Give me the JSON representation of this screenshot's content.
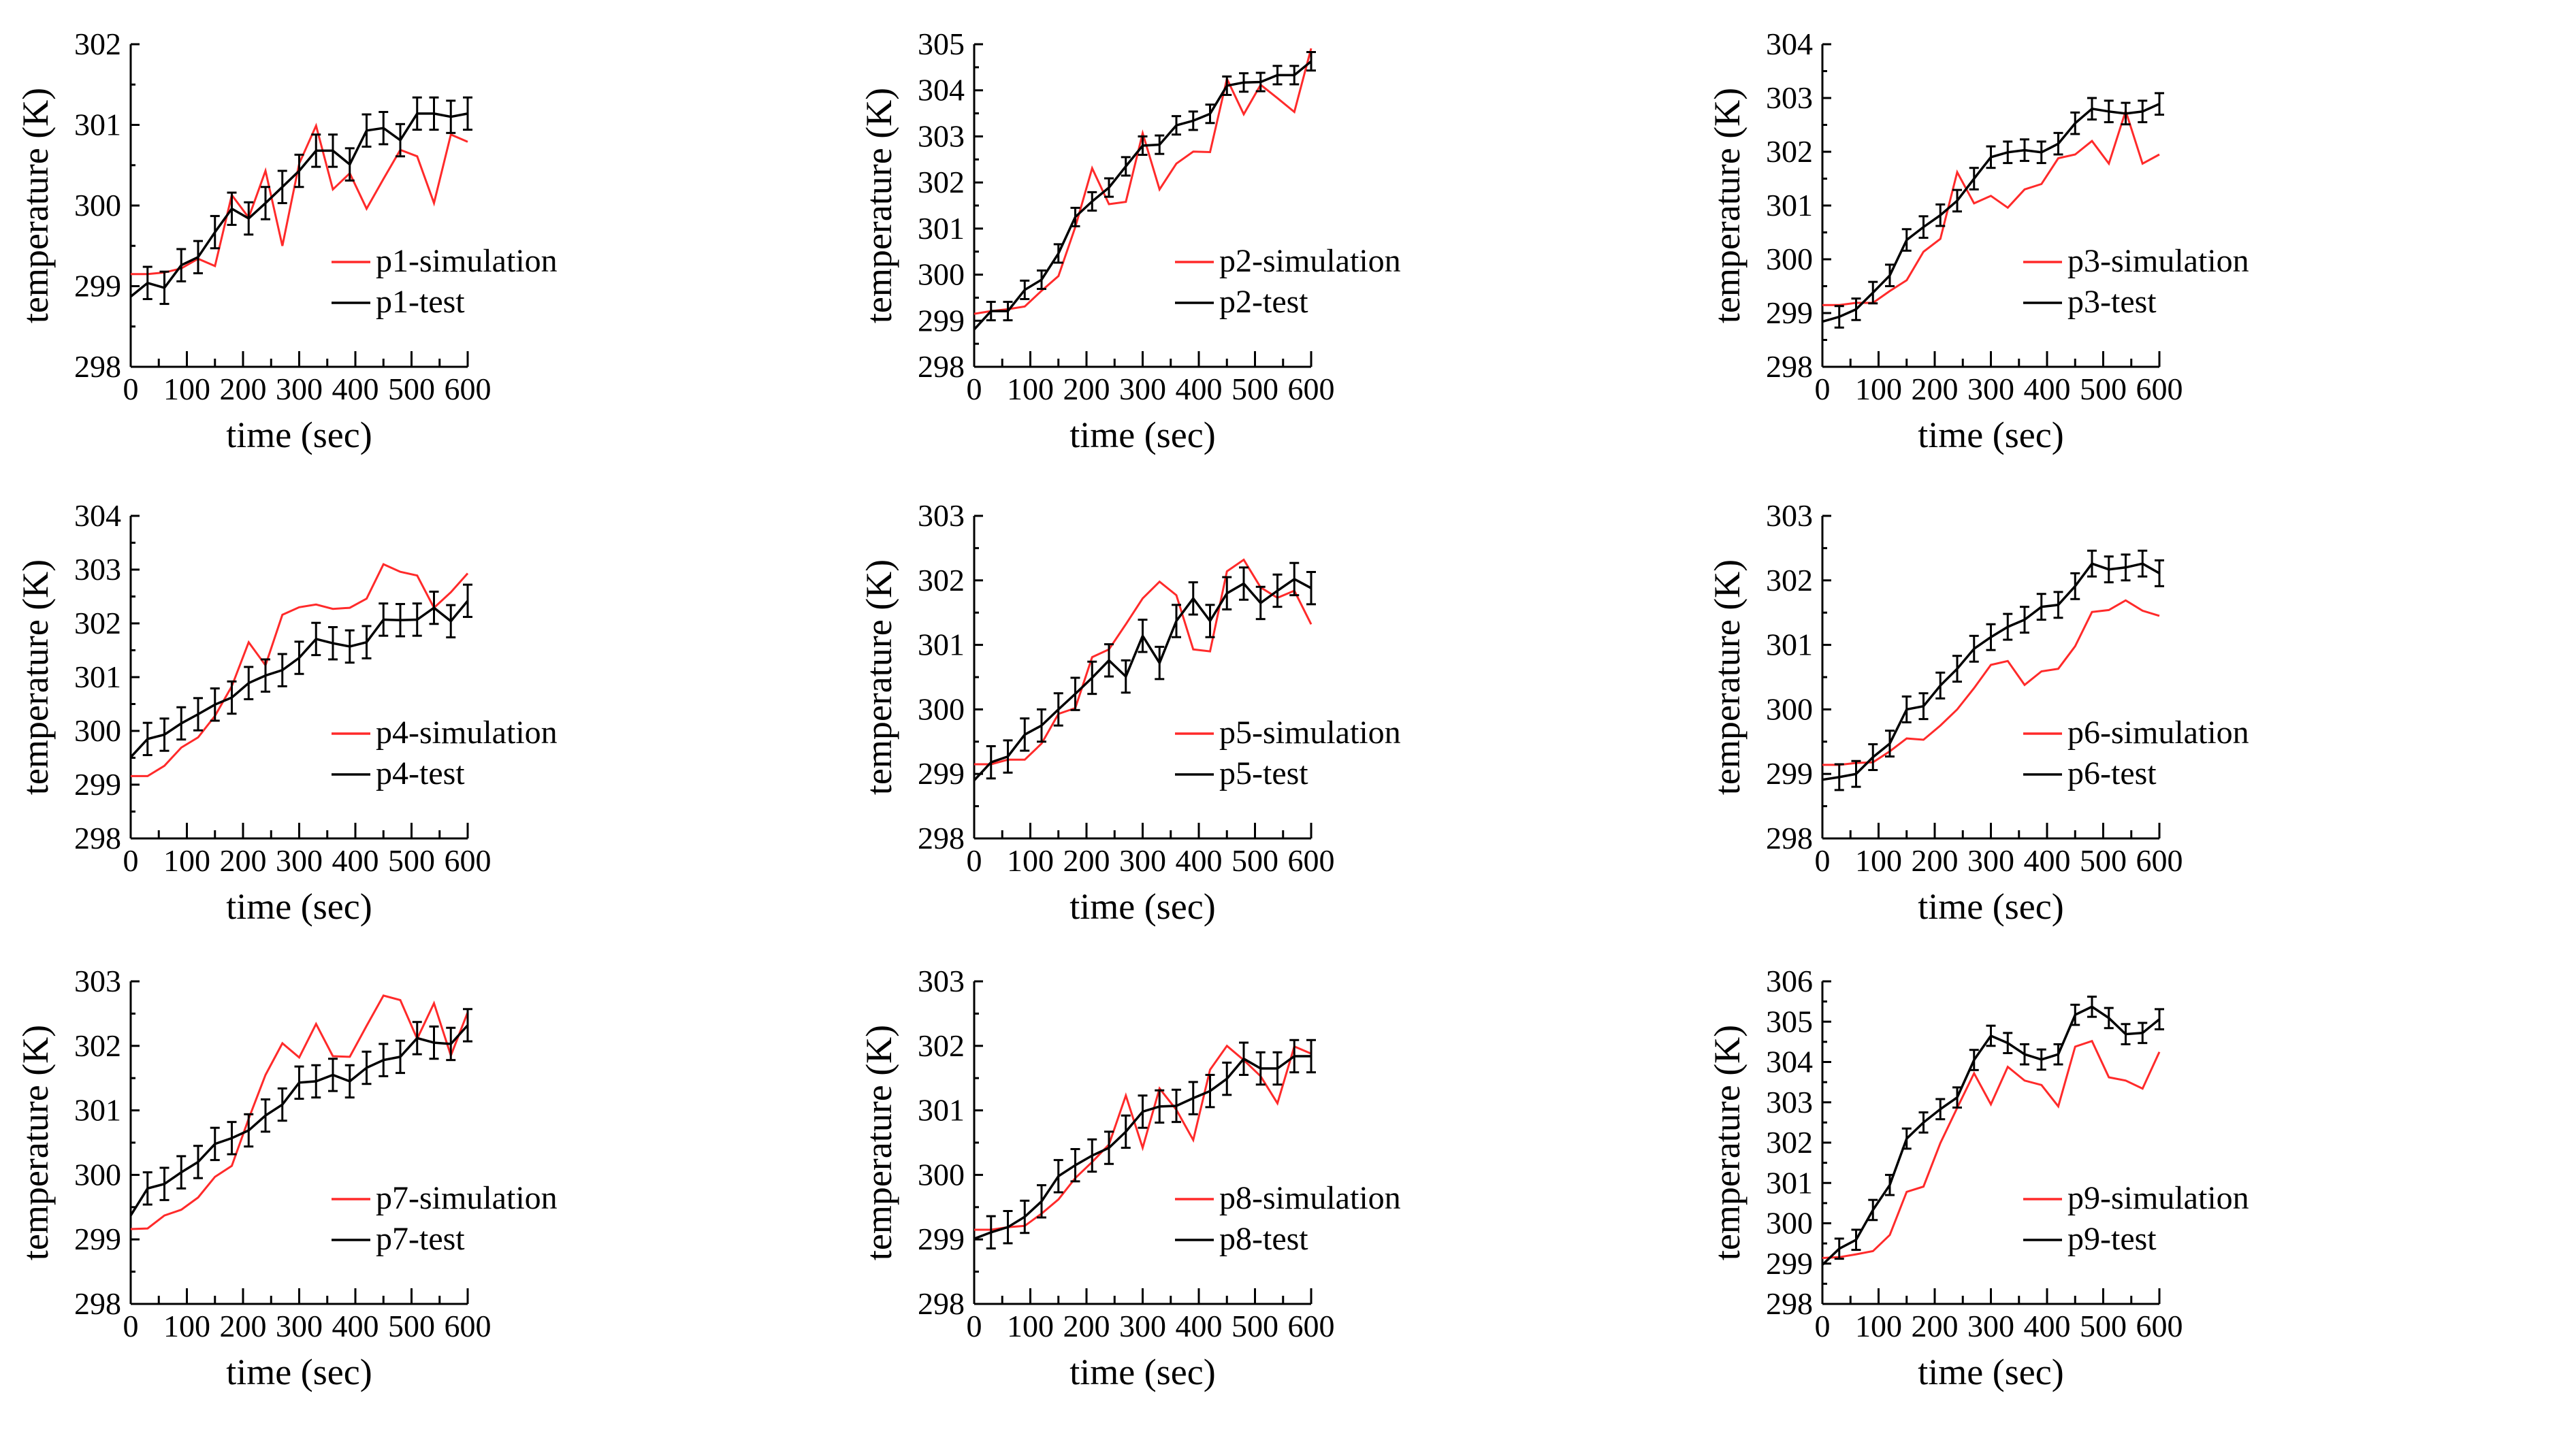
{
  "chart_data": [
    {
      "type": "line",
      "xlabel": "time (sec)",
      "ylabel": "temperature (K)",
      "xlim": [
        0,
        600
      ],
      "ylim": [
        298,
        302
      ],
      "xticks": [
        0,
        100,
        200,
        300,
        400,
        500,
        600
      ],
      "yticks": [
        298,
        299,
        300,
        301,
        302
      ],
      "legend": "bottom-right",
      "x": [
        0,
        30,
        60,
        90,
        120,
        150,
        180,
        210,
        240,
        270,
        300,
        330,
        360,
        390,
        420,
        450,
        480,
        510,
        540,
        570,
        600
      ],
      "series": [
        {
          "name": "p1-simulation",
          "color": "#ff2a2a",
          "values": [
            299.15,
            299.15,
            299.17,
            299.22,
            299.34,
            299.25,
            300.13,
            299.85,
            300.43,
            299.5,
            300.52,
            300.99,
            300.2,
            300.4,
            299.96,
            300.33,
            300.69,
            300.61,
            300.03,
            300.88,
            300.79
          ]
        },
        {
          "name": "p1-test",
          "color": "#000000",
          "error": 0.2,
          "values": [
            298.87,
            299.04,
            298.98,
            299.26,
            299.36,
            299.67,
            299.96,
            299.84,
            300.03,
            300.23,
            300.43,
            300.68,
            300.68,
            300.51,
            300.93,
            300.96,
            300.81,
            301.14,
            301.14,
            301.1,
            301.14
          ]
        }
      ]
    },
    {
      "type": "line",
      "xlabel": "time (sec)",
      "ylabel": "temperature (K)",
      "xlim": [
        0,
        600
      ],
      "ylim": [
        298,
        305
      ],
      "xticks": [
        0,
        100,
        200,
        300,
        400,
        500,
        600
      ],
      "yticks": [
        298,
        299,
        300,
        301,
        302,
        303,
        304,
        305
      ],
      "legend": "bottom-right",
      "x": [
        0,
        30,
        60,
        90,
        120,
        150,
        180,
        210,
        240,
        270,
        300,
        330,
        360,
        390,
        420,
        450,
        480,
        510,
        540,
        570,
        600
      ],
      "series": [
        {
          "name": "p2-simulation",
          "color": "#ff2a2a",
          "values": [
            299.15,
            299.21,
            299.25,
            299.31,
            299.65,
            299.97,
            301.03,
            302.31,
            301.53,
            301.58,
            303.07,
            301.85,
            302.41,
            302.67,
            302.66,
            304.25,
            303.48,
            304.12,
            303.83,
            303.53,
            304.91
          ]
        },
        {
          "name": "p2-test",
          "color": "#000000",
          "error": 0.2,
          "values": [
            298.81,
            299.21,
            299.21,
            299.67,
            299.89,
            300.46,
            301.25,
            301.59,
            301.89,
            302.35,
            302.8,
            302.82,
            303.24,
            303.34,
            303.49,
            304.1,
            304.17,
            304.18,
            304.33,
            304.33,
            304.63
          ]
        }
      ]
    },
    {
      "type": "line",
      "xlabel": "time (sec)",
      "ylabel": "temperature (K)",
      "xlim": [
        0,
        600
      ],
      "ylim": [
        298,
        304
      ],
      "xticks": [
        0,
        100,
        200,
        300,
        400,
        500,
        600
      ],
      "yticks": [
        298,
        299,
        300,
        301,
        302,
        303,
        304
      ],
      "legend": "bottom-right",
      "x": [
        0,
        30,
        60,
        90,
        120,
        150,
        180,
        210,
        240,
        270,
        300,
        330,
        360,
        390,
        420,
        450,
        480,
        510,
        540,
        570,
        600
      ],
      "series": [
        {
          "name": "p3-simulation",
          "color": "#ff2a2a",
          "values": [
            299.15,
            299.15,
            299.19,
            299.19,
            299.41,
            299.61,
            300.14,
            300.38,
            301.62,
            301.04,
            301.18,
            300.96,
            301.3,
            301.4,
            301.88,
            301.95,
            302.2,
            301.78,
            302.76,
            301.78,
            301.95
          ]
        },
        {
          "name": "p3-test",
          "color": "#000000",
          "error": 0.2,
          "values": [
            298.84,
            298.93,
            299.07,
            299.38,
            299.7,
            300.36,
            300.6,
            300.82,
            301.09,
            301.5,
            301.9,
            301.99,
            302.03,
            301.99,
            302.15,
            302.53,
            302.8,
            302.75,
            302.71,
            302.75,
            302.89
          ]
        }
      ]
    },
    {
      "type": "line",
      "xlabel": "time (sec)",
      "ylabel": "temperature (K)",
      "xlim": [
        0,
        600
      ],
      "ylim": [
        298,
        304
      ],
      "xticks": [
        0,
        100,
        200,
        300,
        400,
        500,
        600
      ],
      "yticks": [
        298,
        299,
        300,
        301,
        302,
        303,
        304
      ],
      "legend": "bottom-right",
      "x": [
        0,
        30,
        60,
        90,
        120,
        150,
        180,
        210,
        240,
        270,
        300,
        330,
        360,
        390,
        420,
        450,
        480,
        510,
        540,
        570,
        600
      ],
      "series": [
        {
          "name": "p4-simulation",
          "color": "#ff2a2a",
          "values": [
            299.16,
            299.16,
            299.35,
            299.69,
            299.88,
            300.28,
            300.83,
            301.65,
            301.22,
            302.16,
            302.3,
            302.35,
            302.27,
            302.29,
            302.46,
            303.1,
            302.96,
            302.89,
            302.29,
            302.58,
            302.93
          ]
        },
        {
          "name": "p4-test",
          "color": "#000000",
          "error": 0.3,
          "values": [
            299.51,
            299.85,
            299.93,
            300.14,
            300.31,
            300.49,
            300.62,
            300.89,
            301.03,
            301.13,
            301.36,
            301.71,
            301.63,
            301.57,
            301.65,
            302.07,
            302.06,
            302.07,
            302.29,
            302.04,
            302.42
          ]
        }
      ]
    },
    {
      "type": "line",
      "xlabel": "time (sec)",
      "ylabel": "temperature (K)",
      "xlim": [
        0,
        600
      ],
      "ylim": [
        298,
        303
      ],
      "xticks": [
        0,
        100,
        200,
        300,
        400,
        500,
        600
      ],
      "yticks": [
        298,
        299,
        300,
        301,
        302,
        303
      ],
      "legend": "bottom-right",
      "x": [
        0,
        30,
        60,
        90,
        120,
        150,
        180,
        210,
        240,
        270,
        300,
        330,
        360,
        390,
        420,
        450,
        480,
        510,
        540,
        570,
        600
      ],
      "series": [
        {
          "name": "p5-simulation",
          "color": "#ff2a2a",
          "values": [
            299.15,
            299.15,
            299.22,
            299.22,
            299.47,
            299.93,
            300.02,
            300.81,
            300.93,
            301.32,
            301.72,
            301.98,
            301.77,
            300.93,
            300.9,
            302.14,
            302.32,
            301.89,
            301.73,
            301.84,
            301.32
          ]
        },
        {
          "name": "p5-test",
          "color": "#000000",
          "error": 0.25,
          "values": [
            298.9,
            299.18,
            299.27,
            299.61,
            299.75,
            300.0,
            300.24,
            300.49,
            300.76,
            300.51,
            301.14,
            300.72,
            301.37,
            301.72,
            301.37,
            301.8,
            301.95,
            301.65,
            301.84,
            302.02,
            301.88
          ]
        }
      ]
    },
    {
      "type": "line",
      "xlabel": "time (sec)",
      "ylabel": "temperature (K)",
      "xlim": [
        0,
        600
      ],
      "ylim": [
        298,
        303
      ],
      "xticks": [
        0,
        100,
        200,
        300,
        400,
        500,
        600
      ],
      "yticks": [
        298,
        299,
        300,
        301,
        302,
        303
      ],
      "legend": "bottom-right",
      "x": [
        0,
        30,
        60,
        90,
        120,
        150,
        180,
        210,
        240,
        270,
        300,
        330,
        360,
        390,
        420,
        450,
        480,
        510,
        540,
        570,
        600
      ],
      "series": [
        {
          "name": "p6-simulation",
          "color": "#ff2a2a",
          "values": [
            299.14,
            299.14,
            299.17,
            299.18,
            299.35,
            299.55,
            299.53,
            299.75,
            300.0,
            300.33,
            300.69,
            300.75,
            300.38,
            300.59,
            300.63,
            300.98,
            301.51,
            301.54,
            301.69,
            301.53,
            301.45
          ]
        },
        {
          "name": "p6-test",
          "color": "#000000",
          "error": 0.2,
          "values": [
            298.91,
            298.95,
            299.0,
            299.26,
            299.47,
            300.0,
            300.05,
            300.37,
            300.63,
            300.94,
            301.12,
            301.28,
            301.39,
            301.59,
            301.62,
            301.91,
            302.26,
            302.17,
            302.2,
            302.26,
            302.11
          ]
        }
      ]
    },
    {
      "type": "line",
      "xlabel": "time (sec)",
      "ylabel": "temperature (K)",
      "xlim": [
        0,
        600
      ],
      "ylim": [
        298,
        303
      ],
      "xticks": [
        0,
        100,
        200,
        300,
        400,
        500,
        600
      ],
      "yticks": [
        298,
        299,
        300,
        301,
        302,
        303
      ],
      "legend": "bottom-right",
      "x": [
        0,
        30,
        60,
        90,
        120,
        150,
        180,
        210,
        240,
        270,
        300,
        330,
        360,
        390,
        420,
        450,
        480,
        510,
        540,
        570,
        600
      ],
      "series": [
        {
          "name": "p7-simulation",
          "color": "#ff2a2a",
          "values": [
            299.16,
            299.17,
            299.37,
            299.46,
            299.65,
            299.97,
            300.14,
            300.87,
            301.55,
            302.04,
            301.82,
            302.34,
            301.84,
            301.83,
            302.31,
            302.78,
            302.71,
            302.11,
            302.66,
            301.85,
            302.52
          ]
        },
        {
          "name": "p7-test",
          "color": "#000000",
          "error": 0.25,
          "values": [
            299.37,
            299.79,
            299.86,
            300.04,
            300.2,
            300.48,
            300.57,
            300.69,
            300.92,
            301.09,
            301.43,
            301.45,
            301.55,
            301.45,
            301.66,
            301.78,
            301.83,
            302.12,
            302.05,
            302.03,
            302.32
          ]
        }
      ]
    },
    {
      "type": "line",
      "xlabel": "time (sec)",
      "ylabel": "temperature (K)",
      "xlim": [
        0,
        600
      ],
      "ylim": [
        298,
        303
      ],
      "xticks": [
        0,
        100,
        200,
        300,
        400,
        500,
        600
      ],
      "yticks": [
        298,
        299,
        300,
        301,
        302,
        303
      ],
      "legend": "bottom-right",
      "x": [
        0,
        30,
        60,
        90,
        120,
        150,
        180,
        210,
        240,
        270,
        300,
        330,
        360,
        390,
        420,
        450,
        480,
        510,
        540,
        570,
        600
      ],
      "series": [
        {
          "name": "p8-simulation",
          "color": "#ff2a2a",
          "values": [
            299.15,
            299.15,
            299.19,
            299.21,
            299.4,
            299.62,
            299.95,
            300.2,
            300.47,
            301.23,
            300.42,
            301.34,
            301.01,
            300.54,
            301.63,
            302.0,
            301.78,
            301.53,
            301.11,
            301.99,
            301.88
          ]
        },
        {
          "name": "p8-test",
          "color": "#000000",
          "error": 0.25,
          "values": [
            299.01,
            299.11,
            299.19,
            299.35,
            299.59,
            299.98,
            300.15,
            300.3,
            300.42,
            300.67,
            300.98,
            301.06,
            301.07,
            301.19,
            301.3,
            301.49,
            301.8,
            301.65,
            301.65,
            301.84,
            301.84
          ]
        }
      ]
    },
    {
      "type": "line",
      "xlabel": "time (sec)",
      "ylabel": "temperature (K)",
      "xlim": [
        0,
        600
      ],
      "ylim": [
        298,
        306
      ],
      "xticks": [
        0,
        100,
        200,
        300,
        400,
        500,
        600
      ],
      "yticks": [
        298,
        299,
        300,
        301,
        302,
        303,
        304,
        305,
        306
      ],
      "legend": "bottom-right",
      "x": [
        0,
        30,
        60,
        90,
        120,
        150,
        180,
        210,
        240,
        270,
        300,
        330,
        360,
        390,
        420,
        450,
        480,
        510,
        540,
        570,
        600
      ],
      "series": [
        {
          "name": "p9-simulation",
          "color": "#ff2a2a",
          "values": [
            299.14,
            299.16,
            299.23,
            299.31,
            299.71,
            300.78,
            300.91,
            301.99,
            302.86,
            303.72,
            302.95,
            303.88,
            303.54,
            303.43,
            302.9,
            304.38,
            304.52,
            303.62,
            303.54,
            303.34,
            304.25
          ]
        },
        {
          "name": "p9-test",
          "color": "#000000",
          "error": 0.25,
          "values": [
            298.97,
            299.37,
            299.59,
            300.33,
            300.95,
            302.1,
            302.5,
            302.83,
            303.12,
            304.05,
            304.65,
            304.47,
            304.19,
            304.06,
            304.19,
            305.17,
            305.37,
            305.09,
            304.69,
            304.72,
            305.06
          ]
        }
      ]
    }
  ]
}
